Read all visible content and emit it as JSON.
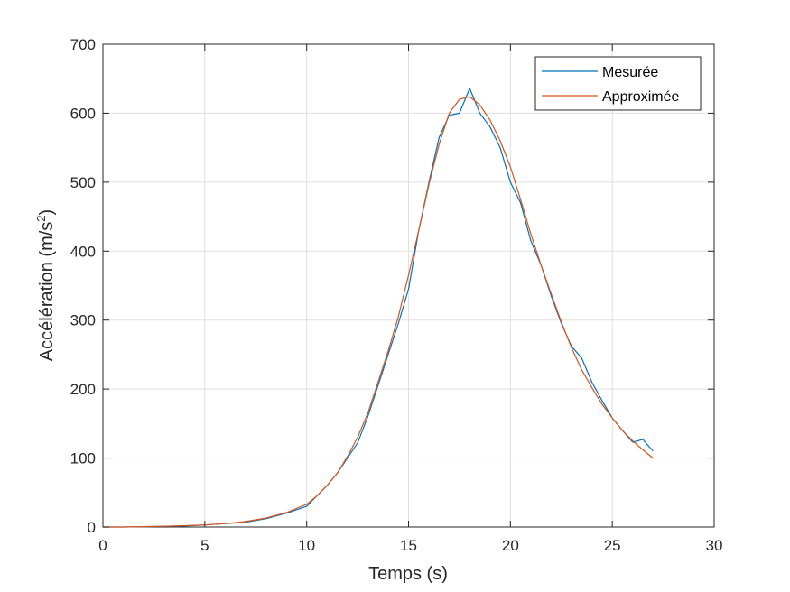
{
  "chart_data": {
    "type": "line",
    "title": "",
    "xlabel": "Temps (s)",
    "ylabel": "Accélération (m/s",
    "ylabel_sup": "2",
    "ylabel_end": ")",
    "xlim": [
      0,
      30
    ],
    "ylim": [
      0,
      700
    ],
    "xticks": [
      0,
      5,
      10,
      15,
      20,
      25,
      30
    ],
    "yticks": [
      0,
      100,
      200,
      300,
      400,
      500,
      600,
      700
    ],
    "grid": true,
    "legend_position": "top-right",
    "series": [
      {
        "name": "Mesurée",
        "color": "#0072BD",
        "x": [
          0,
          1,
          2,
          3,
          4,
          5,
          6,
          7,
          8,
          9,
          10,
          10.5,
          11,
          11.5,
          12,
          12.5,
          13,
          13.5,
          14,
          14.5,
          15,
          15.5,
          16,
          16.5,
          17,
          17.5,
          18,
          18.5,
          19,
          19.5,
          20,
          20.5,
          21,
          21.5,
          22,
          22.5,
          23,
          23.5,
          24,
          24.5,
          25,
          25.5,
          26,
          26.5,
          27
        ],
        "y": [
          0,
          0,
          0.5,
          1,
          1.5,
          3,
          5,
          7,
          12,
          20,
          30,
          45,
          60,
          78,
          100,
          122,
          160,
          205,
          250,
          295,
          345,
          430,
          500,
          565,
          597,
          600,
          636,
          600,
          580,
          550,
          500,
          470,
          415,
          380,
          335,
          295,
          262,
          245,
          210,
          183,
          158,
          140,
          123,
          127,
          110
        ]
      },
      {
        "name": "Approximée",
        "color": "#D95319",
        "x": [
          0,
          1,
          2,
          3,
          4,
          5,
          6,
          7,
          8,
          9,
          10,
          10.5,
          11,
          11.5,
          12,
          12.5,
          13,
          13.5,
          14,
          14.5,
          15,
          15.5,
          16,
          16.5,
          17,
          17.5,
          18,
          18.5,
          19,
          19.5,
          20,
          20.5,
          21,
          21.5,
          22,
          22.5,
          23,
          23.5,
          24,
          24.5,
          25,
          25.5,
          26,
          26.5,
          27
        ],
        "y": [
          0,
          0,
          0.5,
          1,
          2,
          3,
          5,
          8,
          13,
          21,
          33,
          45,
          60,
          78,
          102,
          130,
          165,
          210,
          255,
          305,
          365,
          430,
          497,
          555,
          600,
          620,
          624,
          612,
          590,
          560,
          522,
          475,
          425,
          380,
          338,
          297,
          260,
          228,
          202,
          178,
          158,
          140,
          125,
          112,
          100
        ]
      }
    ]
  }
}
